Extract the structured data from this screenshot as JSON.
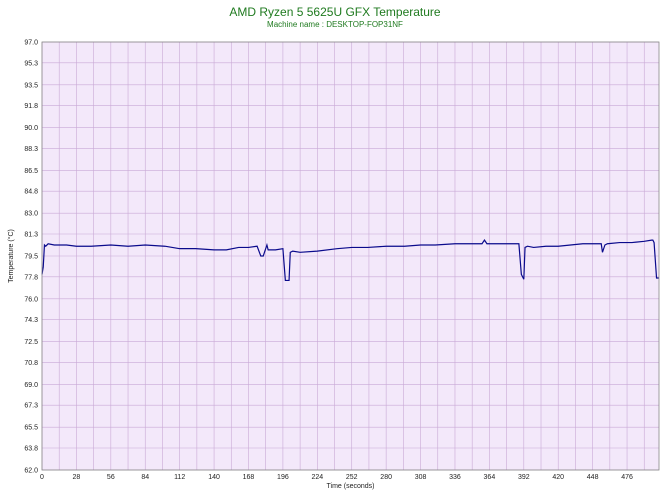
{
  "chart_data": {
    "type": "line",
    "title": "AMD Ryzen 5 5625U GFX Temperature",
    "subtitle": "Machine name : DESKTOP-FOP31NF",
    "xlabel": "Time (seconds)",
    "ylabel": "Temperature (°C)",
    "xlim": [
      0,
      502
    ],
    "ylim": [
      62.0,
      97.0
    ],
    "x_ticks": [
      "0",
      "28",
      "56",
      "84",
      "112",
      "140",
      "168",
      "196",
      "224",
      "252",
      "280",
      "308",
      "336",
      "364",
      "392",
      "420",
      "448",
      "476"
    ],
    "y_ticks": [
      "97.0",
      "95.3",
      "93.5",
      "91.8",
      "90.0",
      "88.3",
      "86.5",
      "84.8",
      "83.0",
      "81.3",
      "79.5",
      "77.8",
      "76.0",
      "74.3",
      "72.5",
      "70.8",
      "69.0",
      "67.3",
      "65.5",
      "63.8",
      "62.0"
    ],
    "grid": true,
    "colors": {
      "plot_bg": "#f3e8fa",
      "grid": "#c9a9d6",
      "line": "#0a0a8c",
      "title": "#1f7a1f"
    },
    "series": [
      {
        "x": [
          0,
          1,
          2,
          3,
          5,
          10,
          20,
          28,
          40,
          56,
          70,
          84,
          100,
          112,
          125,
          140,
          150,
          160,
          168,
          175,
          178,
          180,
          183,
          184,
          190,
          196,
          198,
          200,
          201,
          202,
          204,
          210,
          224,
          240,
          252,
          265,
          280,
          295,
          308,
          320,
          336,
          350,
          358,
          360,
          362,
          364,
          380,
          388,
          390,
          392,
          393,
          395,
          400,
          410,
          420,
          430,
          440,
          448,
          455,
          456,
          458,
          460,
          470,
          480,
          490,
          496,
          497,
          498,
          500,
          502
        ],
        "y": [
          78.0,
          78.6,
          80.4,
          80.3,
          80.5,
          80.4,
          80.4,
          80.3,
          80.3,
          80.4,
          80.3,
          80.4,
          80.3,
          80.1,
          80.1,
          80.0,
          80.0,
          80.2,
          80.2,
          80.3,
          79.5,
          79.5,
          80.4,
          80.0,
          80.0,
          80.1,
          77.5,
          77.5,
          77.5,
          79.8,
          79.9,
          79.8,
          79.9,
          80.1,
          80.2,
          80.2,
          80.3,
          80.3,
          80.4,
          80.4,
          80.5,
          80.5,
          80.5,
          80.8,
          80.5,
          80.5,
          80.5,
          80.5,
          78.0,
          77.6,
          80.2,
          80.3,
          80.2,
          80.3,
          80.3,
          80.4,
          80.5,
          80.5,
          80.5,
          79.8,
          80.4,
          80.5,
          80.6,
          80.6,
          80.7,
          80.8,
          80.8,
          80.6,
          77.7,
          77.7
        ]
      }
    ]
  }
}
